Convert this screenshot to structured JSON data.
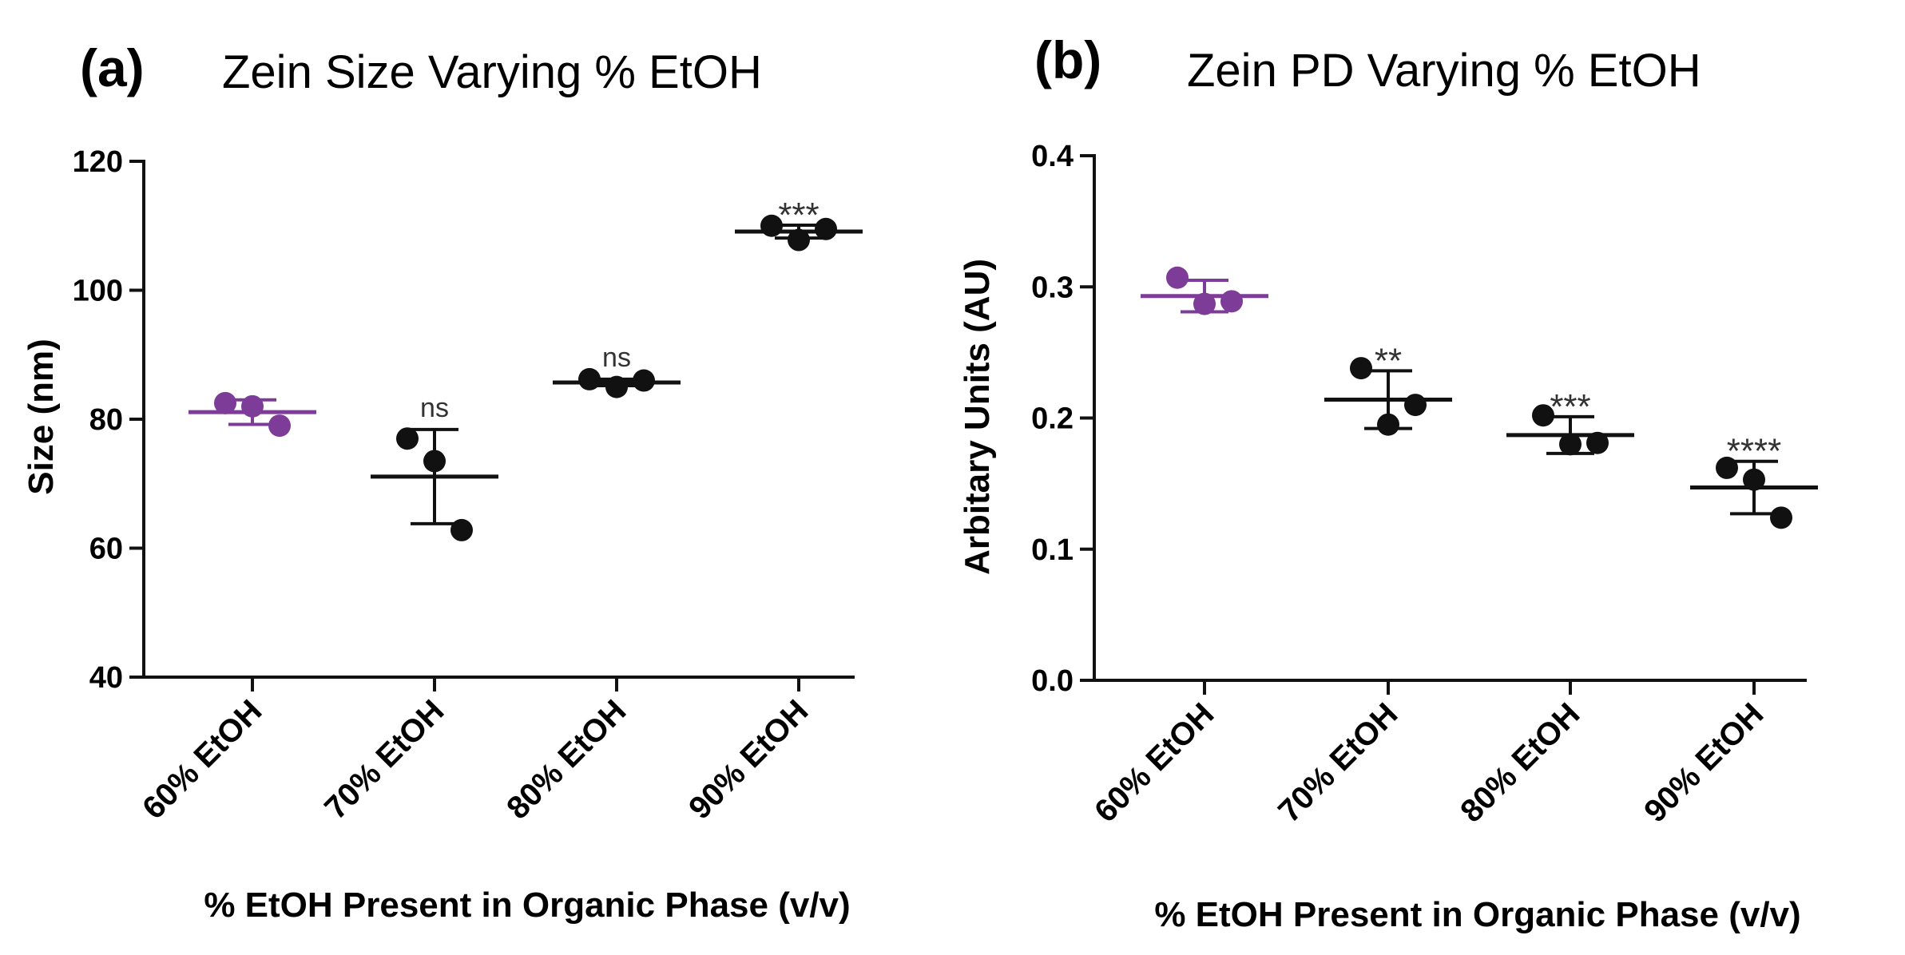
{
  "chart_data": [
    {
      "type": "scatter",
      "panel_label": "(a)",
      "title": "Zein Size Varying % EtOH",
      "xlabel": "% EtOH Present in Organic Phase (v/v)",
      "ylabel": "Size (nm)",
      "ylim": [
        40,
        120
      ],
      "yticks": [
        40,
        60,
        80,
        100,
        120
      ],
      "ytick_labels": [
        "40",
        "60",
        "80",
        "100",
        "120"
      ],
      "categories": [
        "60% EtOH",
        "70% EtOH",
        "80% EtOH",
        "90% EtOH"
      ],
      "points": [
        [
          82.5,
          82,
          79
        ],
        [
          77,
          73.5,
          62.8
        ],
        [
          86.2,
          85,
          86
        ],
        [
          110,
          107.8,
          109.5
        ]
      ],
      "mean": [
        81.1,
        71.1,
        85.7,
        109.1
      ],
      "sd": [
        1.9,
        7.3,
        0.5,
        1.0
      ],
      "significance": [
        "",
        "ns",
        "ns",
        "***"
      ],
      "colors": [
        "#7d3c98",
        "#111111",
        "#111111",
        "#111111"
      ]
    },
    {
      "type": "scatter",
      "panel_label": "(b)",
      "title": "Zein PD Varying % EtOH",
      "xlabel": "% EtOH Present in Organic Phase (v/v)",
      "ylabel": "Arbitary Units (AU)",
      "ylim": [
        0.0,
        0.4
      ],
      "yticks": [
        0.0,
        0.1,
        0.2,
        0.3,
        0.4
      ],
      "ytick_labels": [
        "0.0",
        "0.1",
        "0.2",
        "0.3",
        "0.4"
      ],
      "categories": [
        "60% EtOH",
        "70% EtOH",
        "80% EtOH",
        "90% EtOH"
      ],
      "points": [
        [
          0.307,
          0.287,
          0.289
        ],
        [
          0.238,
          0.195,
          0.21
        ],
        [
          0.202,
          0.18,
          0.181
        ],
        [
          0.162,
          0.153,
          0.124
        ]
      ],
      "mean": [
        0.293,
        0.214,
        0.187,
        0.147
      ],
      "sd": [
        0.012,
        0.022,
        0.014,
        0.02
      ],
      "significance": [
        "",
        "**",
        "***",
        "****"
      ],
      "colors": [
        "#7d3c98",
        "#111111",
        "#111111",
        "#111111"
      ]
    }
  ]
}
